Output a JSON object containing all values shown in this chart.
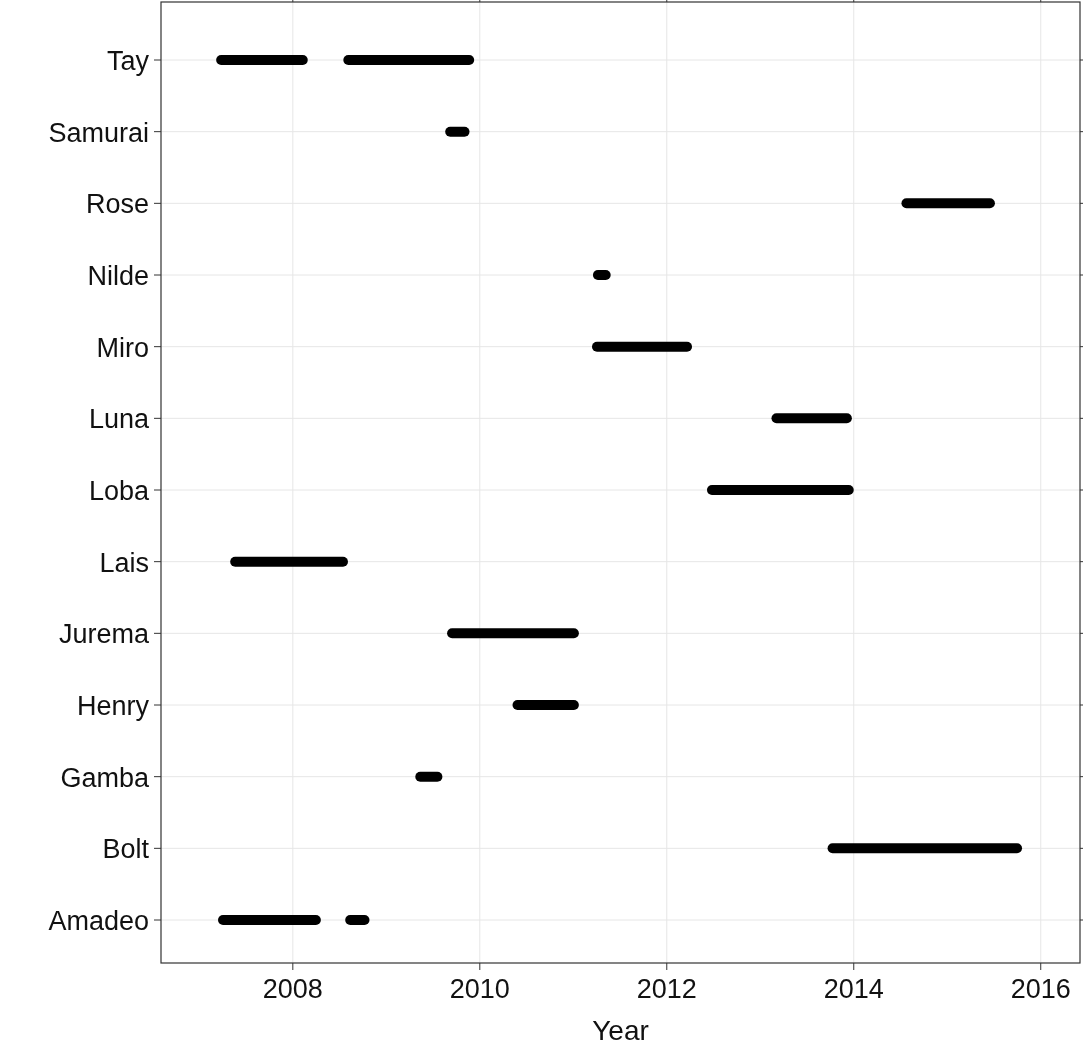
{
  "chart_data": {
    "type": "bar",
    "orientation": "horizontal",
    "xlabel": "Year",
    "categories": [
      "Tay",
      "Samurai",
      "Rose",
      "Nilde",
      "Miro",
      "Luna",
      "Loba",
      "Lais",
      "Jurema",
      "Henry",
      "Gamba",
      "Bolt",
      "Amadeo"
    ],
    "series": [
      {
        "color": "#000000",
        "base": [
          2007.18,
          2009.63,
          2014.51,
          2011.21,
          2011.2,
          2013.12,
          2012.43,
          2007.33,
          2009.65,
          2010.35,
          2009.31,
          2013.72,
          2007.2
        ],
        "values": [
          0.98,
          0.26,
          1.0,
          0.19,
          1.07,
          0.86,
          1.57,
          1.26,
          1.41,
          0.71,
          0.29,
          2.08,
          1.1
        ]
      },
      {
        "color": "#000000",
        "base": [
          2008.54,
          null,
          null,
          null,
          null,
          null,
          null,
          null,
          null,
          null,
          null,
          null,
          2008.56
        ],
        "values": [
          1.4,
          null,
          null,
          null,
          null,
          null,
          null,
          null,
          null,
          null,
          null,
          null,
          0.26
        ]
      }
    ],
    "xlim": [
      2006.59,
      2016.42
    ],
    "xticks": [
      2008,
      2010,
      2012,
      2014,
      2016
    ],
    "grid": true
  }
}
